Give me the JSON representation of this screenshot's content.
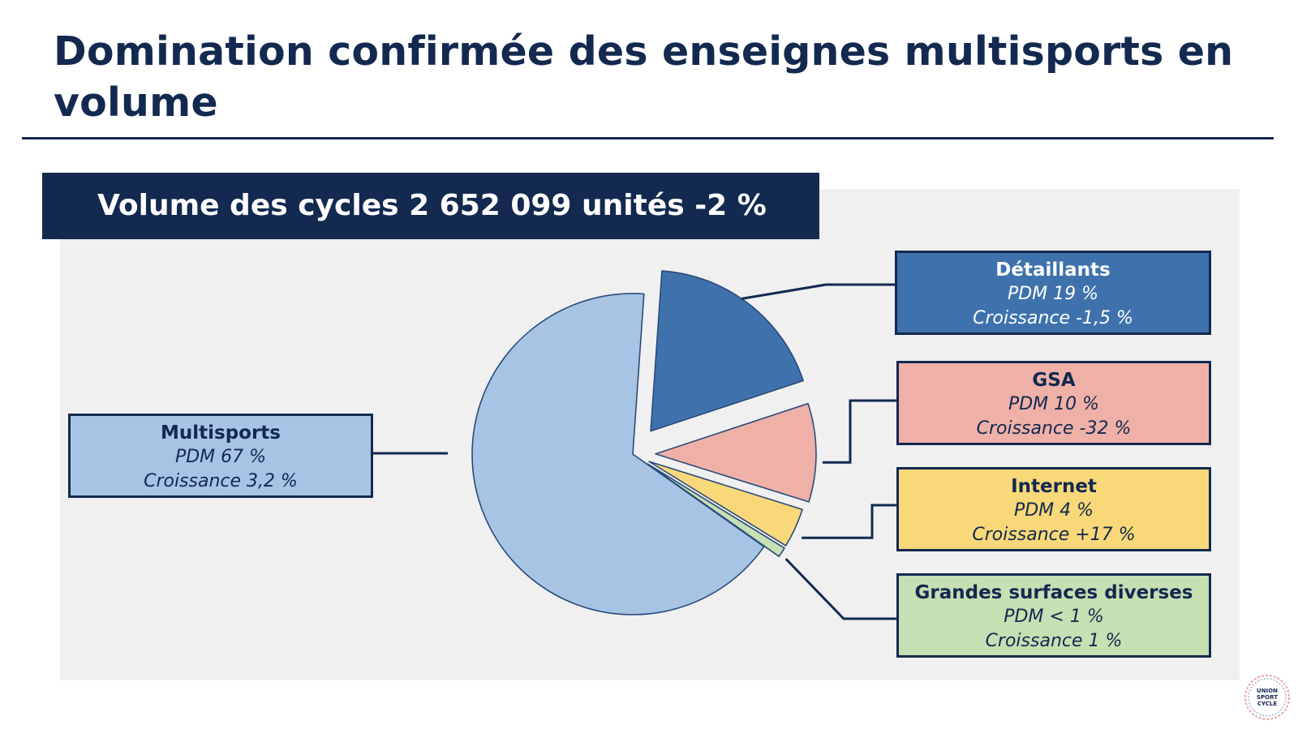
{
  "page": {
    "title": "Domination confirmée des enseignes multisports en volume",
    "banner": "Volume des cycles 2 652 099 unités -2 %"
  },
  "chart_data": {
    "type": "pie",
    "title": "Volume des cycles 2 652 099 unités -2 %",
    "slices": [
      {
        "name": "Multisports",
        "share": 67,
        "pdm": "PDM 67 %",
        "growth": "Croissance  3,2 %",
        "color": "#a7c4e5"
      },
      {
        "name": "Détaillants",
        "share": 19,
        "pdm": "PDM 19 %",
        "growth": "Croissance  -1,5 %",
        "color": "#3f72ad"
      },
      {
        "name": "GSA",
        "share": 10,
        "pdm": "PDM 10 %",
        "growth": "Croissance  -32 %",
        "color": "#efb0a8"
      },
      {
        "name": "Internet",
        "share": 4,
        "pdm": "PDM 4 %",
        "growth": "Croissance  +17 %",
        "color": "#f8d878"
      },
      {
        "name": "Grandes surfaces diverses",
        "share": 1,
        "pdm": "PDM < 1 %",
        "growth": "Croissance  1 %",
        "color": "#c6dfb3"
      }
    ]
  },
  "colors": {
    "navy": "#13294f",
    "panel": "#f0f0f1"
  },
  "logo": {
    "text": [
      "UNION",
      "SPORT",
      "CYCLE"
    ]
  }
}
